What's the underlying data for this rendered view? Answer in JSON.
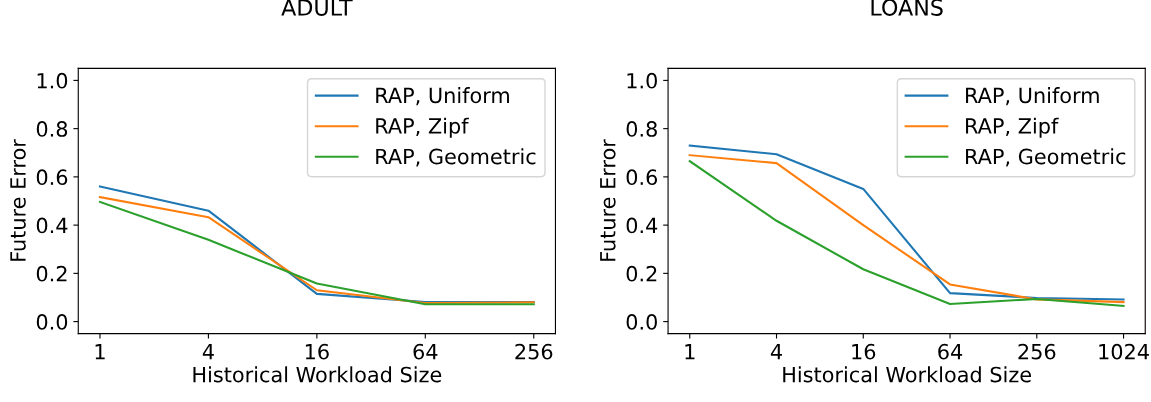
{
  "chart_data": [
    {
      "type": "line",
      "title": "ADULT",
      "xlabel": "Historical Workload Size",
      "ylabel": "Future Error",
      "categories": [
        "1",
        "4",
        "16",
        "64",
        "256"
      ],
      "ylim": [
        -0.05,
        1.05
      ],
      "yticks": [
        {
          "value": 0,
          "label": "0.0"
        },
        {
          "value": 0.2,
          "label": "0.2"
        },
        {
          "value": 0.4,
          "label": "0.4"
        },
        {
          "value": 0.6,
          "label": "0.6"
        },
        {
          "value": 0.8,
          "label": "0.8"
        },
        {
          "value": 1,
          "label": "1.0"
        }
      ],
      "grid": false,
      "legend": "top right",
      "series": [
        {
          "name": "RAP, Uniform",
          "color": "#1f77b4",
          "values": [
            0.56,
            0.46,
            0.115,
            0.081,
            0.081
          ]
        },
        {
          "name": "RAP, Zipf",
          "color": "#ff7f0e",
          "values": [
            0.516,
            0.433,
            0.13,
            0.077,
            0.08
          ]
        },
        {
          "name": "RAP, Geometric",
          "color": "#2ca02c",
          "values": [
            0.496,
            0.339,
            0.158,
            0.072,
            0.072
          ]
        }
      ]
    },
    {
      "type": "line",
      "title": "LOANS",
      "xlabel": "Historical Workload Size",
      "ylabel": "Future Error",
      "categories": [
        "1",
        "4",
        "16",
        "64",
        "256",
        "1024"
      ],
      "ylim": [
        -0.05,
        1.05
      ],
      "yticks": [
        {
          "value": 0,
          "label": "0.0"
        },
        {
          "value": 0.2,
          "label": "0.2"
        },
        {
          "value": 0.4,
          "label": "0.4"
        },
        {
          "value": 0.6,
          "label": "0.6"
        },
        {
          "value": 0.8,
          "label": "0.8"
        },
        {
          "value": 1,
          "label": "1.0"
        }
      ],
      "grid": false,
      "legend": "top right",
      "series": [
        {
          "name": "RAP, Uniform",
          "color": "#1f77b4",
          "values": [
            0.73,
            0.694,
            0.55,
            0.118,
            0.098,
            0.092
          ]
        },
        {
          "name": "RAP, Zipf",
          "color": "#ff7f0e",
          "values": [
            0.69,
            0.657,
            0.4,
            0.154,
            0.092,
            0.081
          ]
        },
        {
          "name": "RAP, Geometric",
          "color": "#2ca02c",
          "values": [
            0.665,
            0.418,
            0.217,
            0.073,
            0.094,
            0.065
          ]
        }
      ]
    }
  ]
}
